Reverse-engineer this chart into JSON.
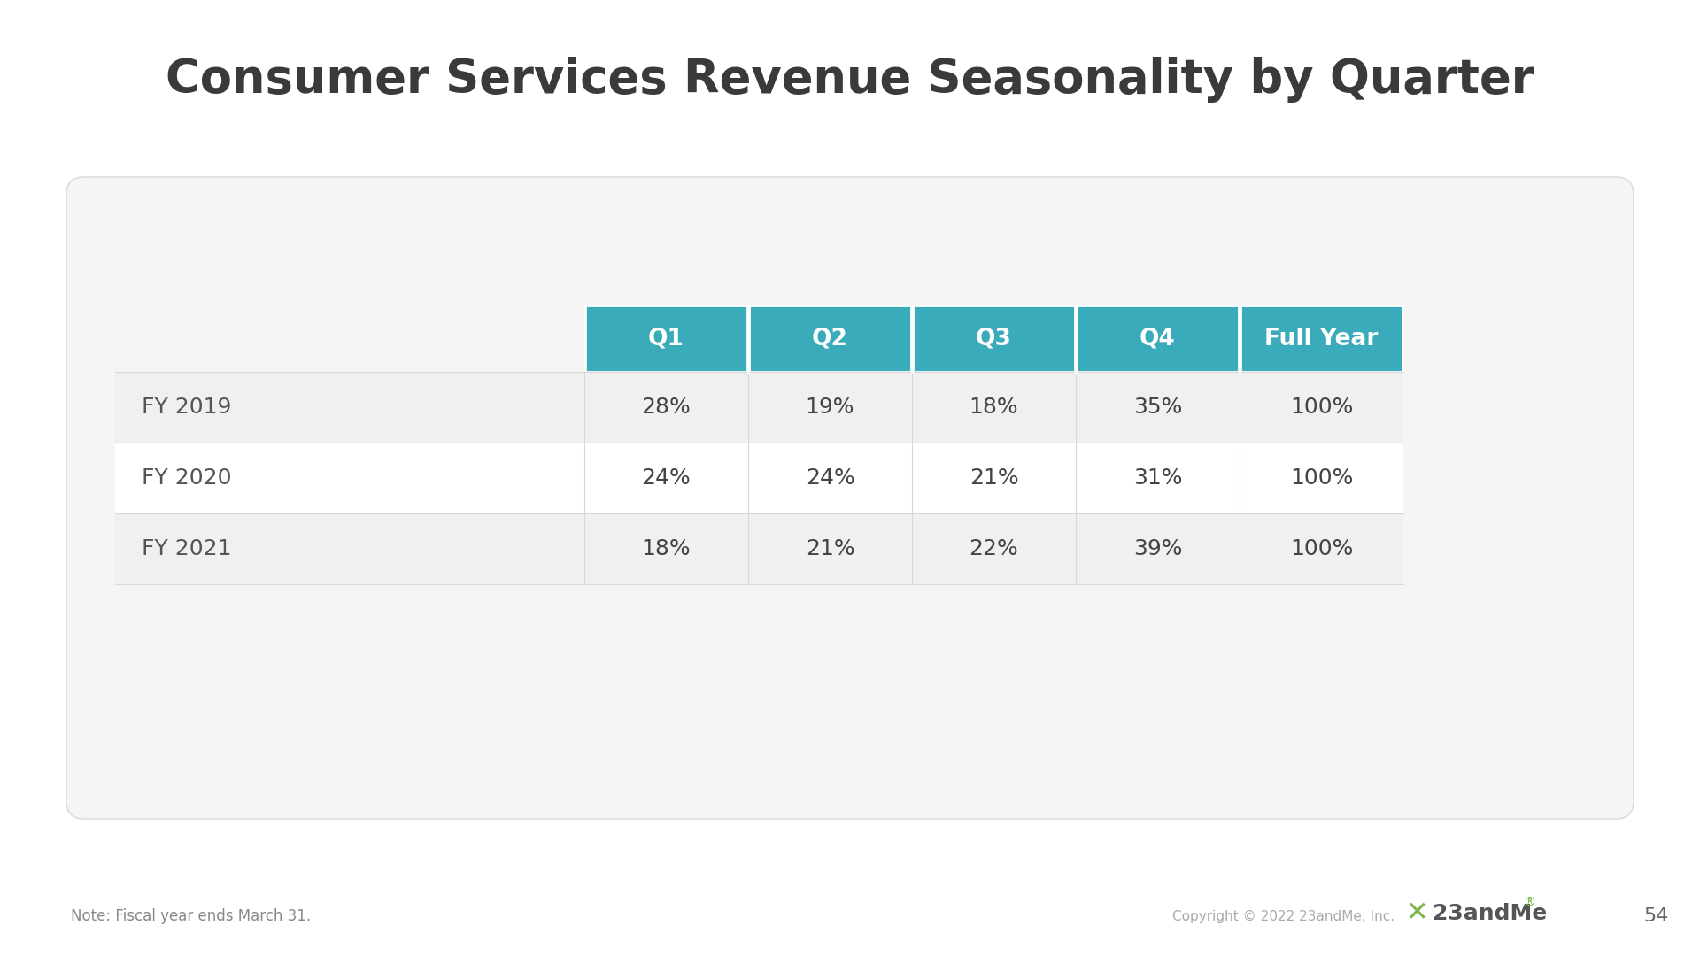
{
  "title": "Consumer Services Revenue Seasonality by Quarter",
  "title_fontsize": 38,
  "title_fontweight": "bold",
  "title_color": "#3a3a3a",
  "columns": [
    "Q1",
    "Q2",
    "Q3",
    "Q4",
    "Full Year"
  ],
  "rows": [
    "FY 2019",
    "FY 2020",
    "FY 2021"
  ],
  "table_data": [
    [
      "28%",
      "19%",
      "18%",
      "35%",
      "100%"
    ],
    [
      "24%",
      "24%",
      "21%",
      "31%",
      "100%"
    ],
    [
      "18%",
      "21%",
      "22%",
      "39%",
      "100%"
    ]
  ],
  "header_bg_color": "#3AABBB",
  "header_text_color": "#ffffff",
  "row_bg_colors": [
    "#f0f0f0",
    "#ffffff",
    "#f0f0f0"
  ],
  "row_label_color": "#555555",
  "cell_text_color": "#444444",
  "card_bg_color": "#f5f5f5",
  "card_border_color": "#dddddd",
  "bg_color": "#ffffff",
  "note_text": "Note: Fiscal year ends March 31.",
  "note_color": "#888888",
  "note_fontsize": 12,
  "copyright_text": "Copyright © 2022 23andMe, Inc.",
  "copyright_color": "#aaaaaa",
  "copyright_fontsize": 11,
  "page_number": "54",
  "page_number_color": "#666666",
  "page_number_fontsize": 16,
  "logo_x_color": "#7ab648",
  "logo_text_color": "#555555",
  "logo_registered_color": "#7ab648"
}
